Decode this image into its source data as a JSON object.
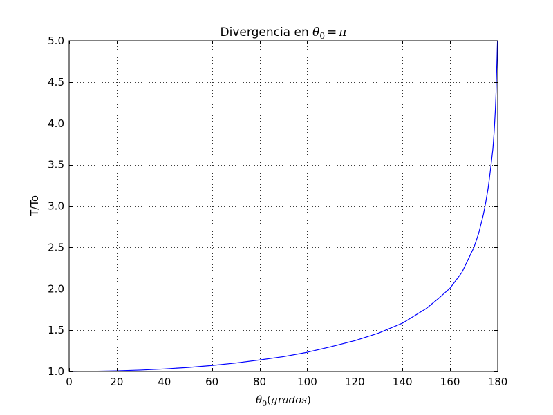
{
  "chart_data": {
    "type": "line",
    "title": {
      "text": "Divergencia en ",
      "math_theta": "θ",
      "math_sub": "0",
      "math_eq": "=",
      "math_pi": "π"
    },
    "xlabel": {
      "theta": "θ",
      "sub": "0",
      "paren_open": "(",
      "text": "grados",
      "paren_close": ")"
    },
    "ylabel": "T/To",
    "xlim": [
      0,
      180
    ],
    "ylim": [
      1.0,
      5.0
    ],
    "xticks": [
      0,
      20,
      40,
      60,
      80,
      100,
      120,
      140,
      160,
      180
    ],
    "xtick_labels": [
      "0",
      "20",
      "40",
      "60",
      "80",
      "100",
      "120",
      "140",
      "160",
      "180"
    ],
    "yticks": [
      1.0,
      1.5,
      2.0,
      2.5,
      3.0,
      3.5,
      4.0,
      4.5,
      5.0
    ],
    "ytick_labels": [
      "1.0",
      "1.5",
      "2.0",
      "2.5",
      "3.0",
      "3.5",
      "4.0",
      "4.5",
      "5.0"
    ],
    "grid": true,
    "series": [
      {
        "color": "#0000ff",
        "x": [
          0,
          10,
          20,
          30,
          40,
          50,
          60,
          70,
          80,
          90,
          100,
          110,
          120,
          130,
          140,
          150,
          155,
          160,
          165,
          170,
          172,
          174,
          175,
          176,
          177,
          178,
          178.5,
          179,
          179.3,
          179.5,
          179.7,
          179.8,
          179.9
        ],
        "y": [
          1.0,
          1.002,
          1.008,
          1.017,
          1.031,
          1.049,
          1.073,
          1.103,
          1.14,
          1.18,
          1.233,
          1.3,
          1.373,
          1.465,
          1.585,
          1.762,
          1.88,
          2.008,
          2.2,
          2.5,
          2.67,
          2.9,
          3.05,
          3.22,
          3.45,
          3.7,
          3.9,
          4.16,
          4.38,
          4.6,
          4.78,
          4.9,
          5.0
        ]
      }
    ]
  }
}
